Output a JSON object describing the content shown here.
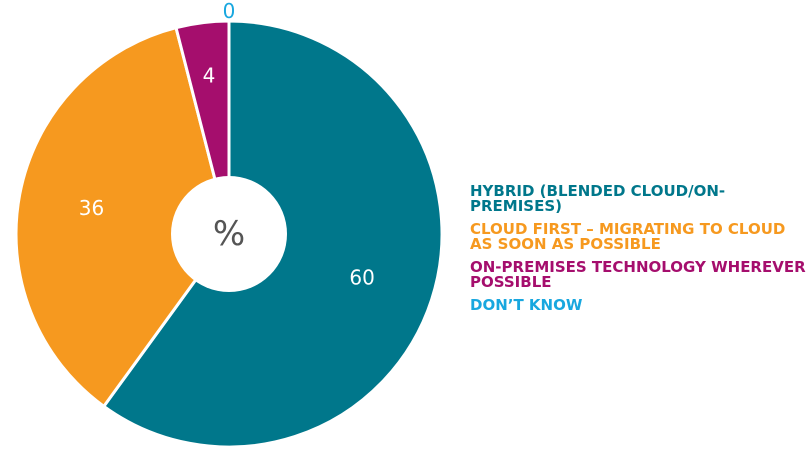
{
  "chart_data": {
    "type": "pie",
    "center_label": "%",
    "categories": [
      "HYBRID (BLENDED CLOUD/ON-PREMISES)",
      "CLOUD FIRST – MIGRATING TO CLOUD AS SOON AS POSSIBLE",
      "ON-PREMISES TECHNOLOGY WHEREVER POSSIBLE",
      "DON’T KNOW"
    ],
    "values": [
      60,
      36,
      4,
      0
    ],
    "colors": [
      "#00778b",
      "#f6991f",
      "#a50e6d",
      "#18a7df"
    ],
    "legend": "right"
  }
}
